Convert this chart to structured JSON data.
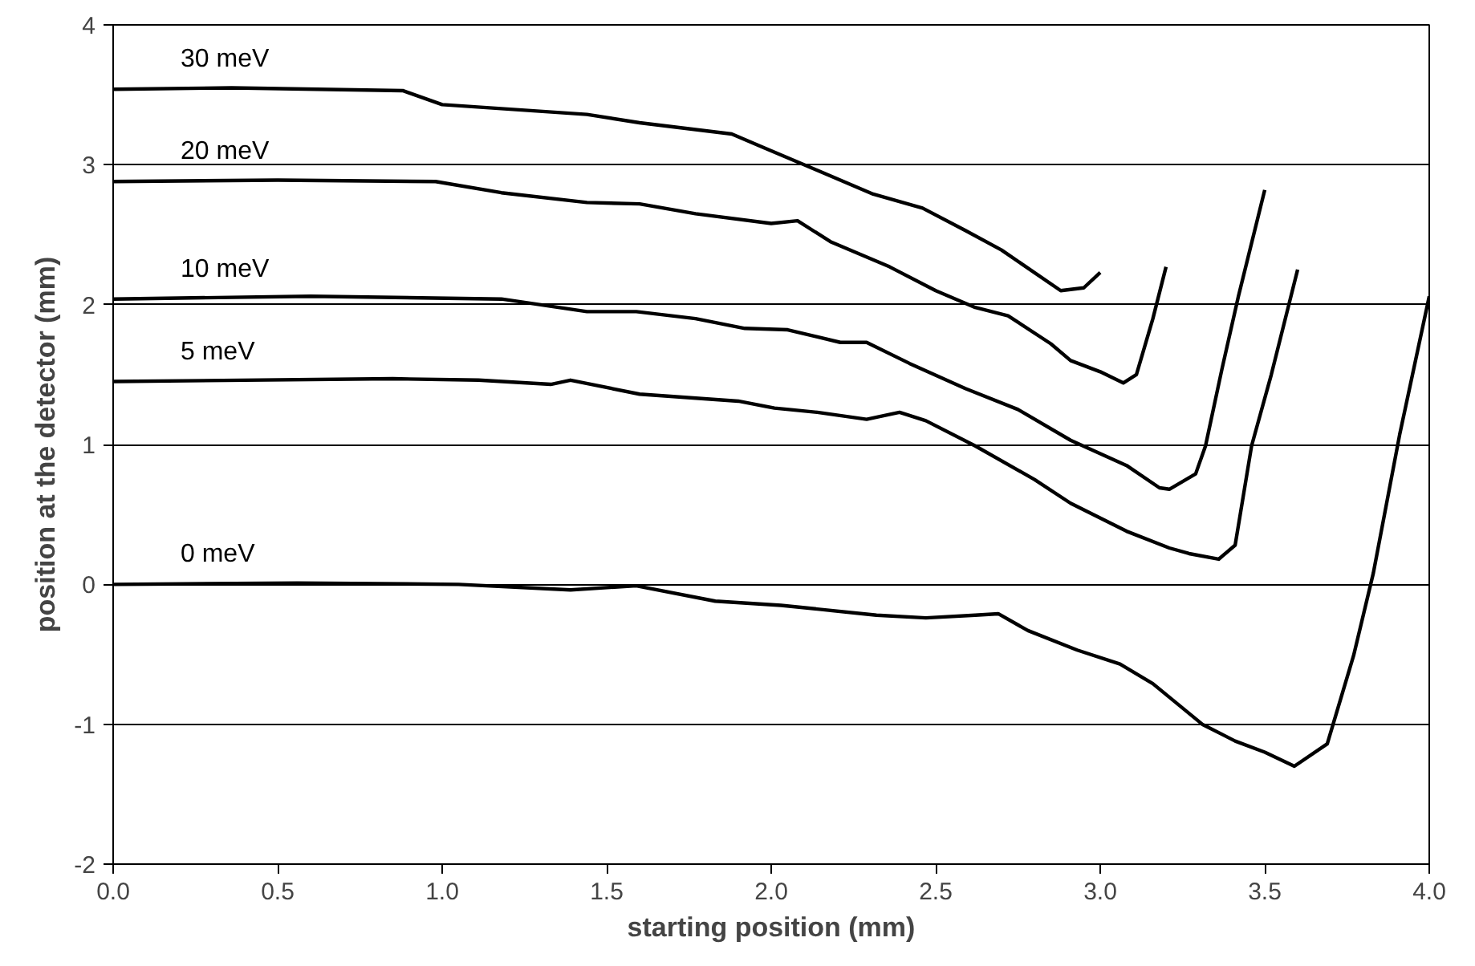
{
  "chart_data": {
    "type": "line",
    "xlabel": "starting position (mm)",
    "ylabel": "position at the detector (mm)",
    "xlim": [
      0,
      4
    ],
    "ylim": [
      -2,
      4
    ],
    "xticks": [
      {
        "value": 0,
        "label": "0.0"
      },
      {
        "value": 0.5,
        "label": "0.5"
      },
      {
        "value": 1,
        "label": "1.0"
      },
      {
        "value": 1.5,
        "label": "1.5"
      },
      {
        "value": 2,
        "label": "2.0"
      },
      {
        "value": 2.5,
        "label": "2.5"
      },
      {
        "value": 3,
        "label": "3.0"
      },
      {
        "value": 3.5,
        "label": "3.5"
      },
      {
        "value": 4,
        "label": "4.0"
      }
    ],
    "yticks": [
      -2,
      -1,
      0,
      1,
      2,
      3,
      4
    ],
    "grid": "y",
    "legend": false,
    "marker": "none",
    "line_style": "solid",
    "series": [
      {
        "name": "30 meV",
        "color": "#000000",
        "x": [
          0,
          0.36,
          0.88,
          1.0,
          1.44,
          1.6,
          1.88,
          1.98,
          2.14,
          2.31,
          2.46,
          2.59,
          2.7,
          2.88,
          2.95,
          3.0
        ],
        "values": [
          3.54,
          3.55,
          3.53,
          3.43,
          3.36,
          3.3,
          3.22,
          3.12,
          2.96,
          2.79,
          2.69,
          2.53,
          2.39,
          2.1,
          2.12,
          2.23
        ]
      },
      {
        "name": "20 meV",
        "color": "#000000",
        "x": [
          0,
          0.5,
          0.98,
          1.18,
          1.44,
          1.6,
          1.77,
          2.0,
          2.08,
          2.18,
          2.36,
          2.5,
          2.62,
          2.72,
          2.85,
          2.91,
          3.0,
          3.07,
          3.11,
          3.16,
          3.2
        ],
        "values": [
          2.88,
          2.89,
          2.88,
          2.8,
          2.73,
          2.72,
          2.65,
          2.58,
          2.6,
          2.45,
          2.27,
          2.1,
          1.98,
          1.92,
          1.72,
          1.6,
          1.52,
          1.44,
          1.5,
          1.9,
          2.27
        ]
      },
      {
        "name": "10 meV",
        "color": "#000000",
        "x": [
          0,
          0.6,
          1.18,
          1.44,
          1.59,
          1.77,
          1.92,
          2.05,
          2.21,
          2.29,
          2.42,
          2.59,
          2.75,
          2.91,
          3.08,
          3.18,
          3.21,
          3.29,
          3.32,
          3.37,
          3.42,
          3.5
        ],
        "values": [
          2.04,
          2.06,
          2.04,
          1.95,
          1.95,
          1.9,
          1.83,
          1.82,
          1.73,
          1.73,
          1.58,
          1.4,
          1.25,
          1.03,
          0.85,
          0.69,
          0.68,
          0.79,
          0.99,
          1.54,
          2.06,
          2.82
        ]
      },
      {
        "name": "5 meV",
        "color": "#000000",
        "x": [
          0,
          0.85,
          1.11,
          1.33,
          1.39,
          1.6,
          1.9,
          2.01,
          2.14,
          2.29,
          2.39,
          2.47,
          2.62,
          2.8,
          2.91,
          3.08,
          3.21,
          3.27,
          3.36,
          3.41,
          3.46,
          3.52,
          3.6
        ],
        "values": [
          1.45,
          1.47,
          1.46,
          1.43,
          1.46,
          1.36,
          1.31,
          1.26,
          1.23,
          1.18,
          1.23,
          1.17,
          0.99,
          0.75,
          0.58,
          0.38,
          0.26,
          0.22,
          0.18,
          0.28,
          0.99,
          1.5,
          2.25
        ]
      },
      {
        "name": "0 meV",
        "color": "#000000",
        "x": [
          0,
          0.56,
          1.05,
          1.39,
          1.59,
          1.83,
          2.03,
          2.32,
          2.47,
          2.62,
          2.69,
          2.78,
          2.93,
          3.06,
          3.16,
          3.31,
          3.41,
          3.5,
          3.59,
          3.69,
          3.77,
          3.83,
          3.91,
          4.0
        ],
        "values": [
          0,
          0.01,
          0,
          -0.04,
          -0.01,
          -0.12,
          -0.15,
          -0.22,
          -0.24,
          -0.22,
          -0.21,
          -0.33,
          -0.47,
          -0.57,
          -0.71,
          -1.0,
          -1.12,
          -1.2,
          -1.3,
          -1.14,
          -0.51,
          0.08,
          1.07,
          2.06
        ]
      }
    ]
  }
}
